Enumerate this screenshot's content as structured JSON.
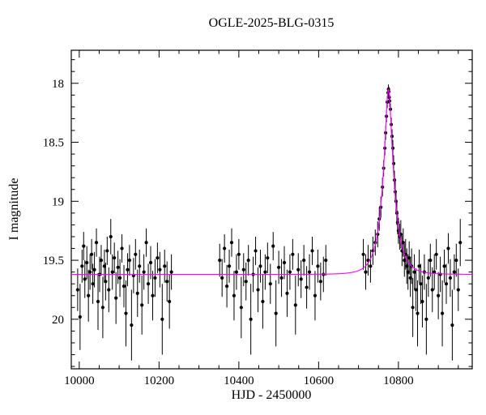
{
  "chart_data": {
    "type": "scatter",
    "title": "OGLE-2025-BLG-0315",
    "xlabel": "HJD - 2450000",
    "ylabel": "I magnitude",
    "xlim": [
      9980,
      10985
    ],
    "ylim_mag": [
      20.42,
      17.72
    ],
    "x_major_ticks": [
      10000,
      10200,
      10400,
      10600,
      10800
    ],
    "x_minor_step": 50,
    "y_major_step": 0.5,
    "y_minor_step": 0.1,
    "grid": false,
    "legend": "none",
    "point_color": "#000000",
    "model_color": "#ff00ff",
    "model": {
      "type": "paczynski",
      "t0": 10775,
      "tE": 30,
      "u0": 0.24,
      "baseline_mag": 19.62,
      "peak_mag": 18.05
    },
    "points": [
      [
        9996,
        19.75,
        0.18
      ],
      [
        10002,
        19.98,
        0.28
      ],
      [
        10007,
        19.55,
        0.14
      ],
      [
        10011,
        19.38,
        0.12
      ],
      [
        10014,
        19.66,
        0.16
      ],
      [
        10019,
        19.52,
        0.14
      ],
      [
        10023,
        19.8,
        0.22
      ],
      [
        10027,
        19.6,
        0.15
      ],
      [
        10031,
        19.45,
        0.13
      ],
      [
        10034,
        19.7,
        0.17
      ],
      [
        10038,
        19.58,
        0.15
      ],
      [
        10043,
        19.35,
        0.12
      ],
      [
        10047,
        19.85,
        0.24
      ],
      [
        10051,
        19.62,
        0.15
      ],
      [
        10055,
        19.5,
        0.13
      ],
      [
        10059,
        19.9,
        0.26
      ],
      [
        10063,
        19.55,
        0.14
      ],
      [
        10066,
        19.68,
        0.16
      ],
      [
        10070,
        19.42,
        0.12
      ],
      [
        10074,
        19.75,
        0.19
      ],
      [
        10079,
        19.3,
        0.15
      ],
      [
        10083,
        19.6,
        0.15
      ],
      [
        10088,
        19.48,
        0.13
      ],
      [
        10092,
        19.82,
        0.22
      ],
      [
        10097,
        19.56,
        0.14
      ],
      [
        10102,
        19.65,
        0.16
      ],
      [
        10107,
        19.4,
        0.12
      ],
      [
        10112,
        19.72,
        0.18
      ],
      [
        10117,
        19.95,
        0.28
      ],
      [
        10121,
        19.58,
        0.14
      ],
      [
        10126,
        19.5,
        0.13
      ],
      [
        10131,
        20.05,
        0.3
      ],
      [
        10136,
        19.63,
        0.15
      ],
      [
        10141,
        19.45,
        0.13
      ],
      [
        10146,
        19.78,
        0.2
      ],
      [
        10151,
        19.55,
        0.14
      ],
      [
        10157,
        19.88,
        0.25
      ],
      [
        10162,
        19.6,
        0.15
      ],
      [
        10168,
        19.35,
        0.12
      ],
      [
        10173,
        19.7,
        0.17
      ],
      [
        10179,
        19.52,
        0.14
      ],
      [
        10184,
        19.8,
        0.21
      ],
      [
        10190,
        19.65,
        0.16
      ],
      [
        10196,
        19.48,
        0.13
      ],
      [
        10202,
        19.58,
        0.15
      ],
      [
        10208,
        20.0,
        0.3
      ],
      [
        10214,
        19.55,
        0.14
      ],
      [
        10220,
        19.68,
        0.17
      ],
      [
        10226,
        19.85,
        0.23
      ],
      [
        10231,
        19.6,
        0.15
      ],
      [
        10352,
        19.5,
        0.14
      ],
      [
        10358,
        19.65,
        0.16
      ],
      [
        10364,
        19.4,
        0.12
      ],
      [
        10370,
        19.72,
        0.18
      ],
      [
        10376,
        19.55,
        0.14
      ],
      [
        10382,
        19.35,
        0.12
      ],
      [
        10388,
        19.8,
        0.21
      ],
      [
        10394,
        19.6,
        0.15
      ],
      [
        10400,
        19.45,
        0.13
      ],
      [
        10406,
        19.9,
        0.26
      ],
      [
        10412,
        19.58,
        0.14
      ],
      [
        10418,
        19.68,
        0.16
      ],
      [
        10424,
        19.5,
        0.13
      ],
      [
        10430,
        20.0,
        0.3
      ],
      [
        10436,
        19.62,
        0.15
      ],
      [
        10442,
        19.42,
        0.12
      ],
      [
        10448,
        19.75,
        0.19
      ],
      [
        10454,
        19.55,
        0.14
      ],
      [
        10460,
        19.85,
        0.23
      ],
      [
        10466,
        19.6,
        0.15
      ],
      [
        10472,
        19.48,
        0.13
      ],
      [
        10479,
        19.7,
        0.17
      ],
      [
        10486,
        19.38,
        0.12
      ],
      [
        10493,
        19.95,
        0.28
      ],
      [
        10500,
        19.56,
        0.14
      ],
      [
        10507,
        19.65,
        0.16
      ],
      [
        10514,
        19.52,
        0.14
      ],
      [
        10521,
        19.78,
        0.2
      ],
      [
        10528,
        19.6,
        0.15
      ],
      [
        10535,
        19.45,
        0.13
      ],
      [
        10542,
        19.88,
        0.25
      ],
      [
        10549,
        19.58,
        0.14
      ],
      [
        10556,
        19.66,
        0.16
      ],
      [
        10563,
        19.5,
        0.13
      ],
      [
        10570,
        19.73,
        0.18
      ],
      [
        10577,
        19.6,
        0.15
      ],
      [
        10584,
        19.42,
        0.12
      ],
      [
        10591,
        19.8,
        0.21
      ],
      [
        10598,
        19.55,
        0.14
      ],
      [
        10605,
        19.68,
        0.16
      ],
      [
        10612,
        19.62,
        0.15
      ],
      [
        10618,
        19.5,
        0.13
      ],
      [
        10712,
        19.45,
        0.13
      ],
      [
        10718,
        19.6,
        0.15
      ],
      [
        10724,
        19.5,
        0.13
      ],
      [
        10730,
        19.55,
        0.14
      ],
      [
        10736,
        19.42,
        0.12
      ],
      [
        10742,
        19.35,
        0.11
      ],
      [
        10748,
        19.28,
        0.11
      ],
      [
        10752,
        19.15,
        0.1
      ],
      [
        10756,
        19.05,
        0.09
      ],
      [
        10760,
        18.88,
        0.08
      ],
      [
        10763,
        18.72,
        0.07
      ],
      [
        10766,
        18.55,
        0.06
      ],
      [
        10768,
        18.42,
        0.06
      ],
      [
        10770,
        18.28,
        0.05
      ],
      [
        10772,
        18.16,
        0.05
      ],
      [
        10774,
        18.08,
        0.04
      ],
      [
        10775,
        18.05,
        0.04
      ],
      [
        10776,
        18.07,
        0.04
      ],
      [
        10777,
        18.12,
        0.05
      ],
      [
        10778,
        18.15,
        0.05
      ],
      [
        10780,
        18.22,
        0.05
      ],
      [
        10782,
        18.35,
        0.06
      ],
      [
        10784,
        18.45,
        0.06
      ],
      [
        10786,
        18.55,
        0.07
      ],
      [
        10788,
        18.68,
        0.07
      ],
      [
        10790,
        18.82,
        0.08
      ],
      [
        10792,
        18.92,
        0.09
      ],
      [
        10794,
        19.0,
        0.09
      ],
      [
        10796,
        19.1,
        0.1
      ],
      [
        10798,
        19.18,
        0.1
      ],
      [
        10800,
        19.25,
        0.11
      ],
      [
        10803,
        19.3,
        0.11
      ],
      [
        10806,
        19.28,
        0.12
      ],
      [
        10809,
        19.42,
        0.13
      ],
      [
        10812,
        19.35,
        0.12
      ],
      [
        10815,
        19.5,
        0.14
      ],
      [
        10818,
        19.45,
        0.13
      ],
      [
        10821,
        19.55,
        0.15
      ],
      [
        10824,
        19.6,
        0.15
      ],
      [
        10827,
        19.48,
        0.14
      ],
      [
        10830,
        19.65,
        0.16
      ],
      [
        10833,
        19.55,
        0.15
      ],
      [
        10836,
        19.9,
        0.25
      ],
      [
        10840,
        19.6,
        0.15
      ],
      [
        10844,
        19.75,
        0.18
      ],
      [
        10848,
        19.95,
        0.28
      ],
      [
        10852,
        19.55,
        0.14
      ],
      [
        10856,
        19.7,
        0.17
      ],
      [
        10860,
        19.85,
        0.22
      ],
      [
        10865,
        19.6,
        0.15
      ],
      [
        10870,
        20.0,
        0.3
      ],
      [
        10875,
        19.65,
        0.16
      ],
      [
        10880,
        19.5,
        0.14
      ],
      [
        10885,
        19.75,
        0.19
      ],
      [
        10890,
        19.6,
        0.15
      ],
      [
        10895,
        19.45,
        0.13
      ],
      [
        10900,
        19.8,
        0.2
      ],
      [
        10905,
        19.62,
        0.15
      ],
      [
        10910,
        19.95,
        0.28
      ],
      [
        10915,
        19.55,
        0.14
      ],
      [
        10920,
        19.7,
        0.17
      ],
      [
        10925,
        19.4,
        0.13
      ],
      [
        10930,
        19.65,
        0.16
      ],
      [
        10935,
        20.05,
        0.3
      ],
      [
        10940,
        19.6,
        0.15
      ],
      [
        10945,
        19.5,
        0.14
      ],
      [
        10950,
        19.75,
        0.18
      ],
      [
        10955,
        19.35,
        0.2
      ]
    ]
  }
}
